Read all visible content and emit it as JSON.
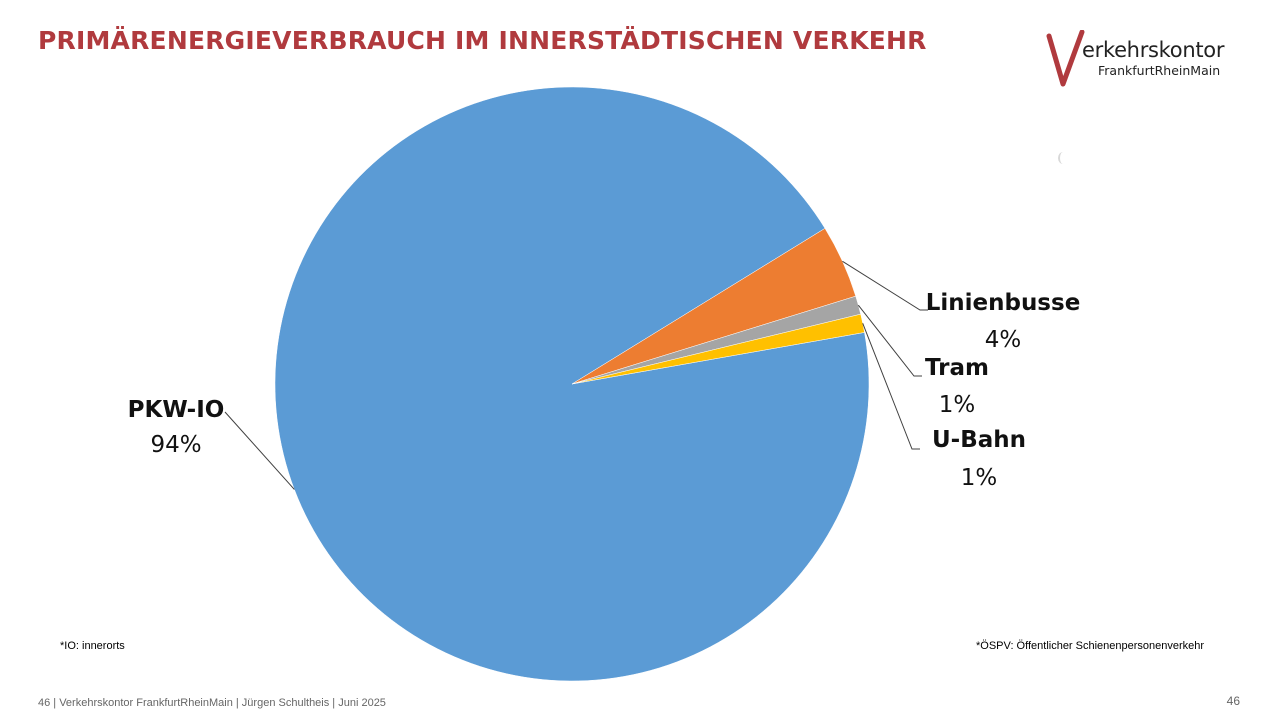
{
  "slide": {
    "title": "PRIMÄRENERGIEVERBRAUCH IM INNERSTÄDTISCHEN VERKEHR",
    "logo": {
      "letter": "V",
      "word": "erkehrskontor",
      "sub": "FrankfurtRheinMain",
      "color": "#b03a3e"
    },
    "note_left": "*IO: innerorts",
    "note_right": "*ÖSPV: Öffentlicher Schienenpersonenverkehr",
    "footer": "46  |  Verkehrskontor FrankfurtRheinMain | Jürgen Schultheis | Juni 2025",
    "page_number": "46"
  },
  "chart_data": {
    "type": "pie",
    "title": "",
    "slices": [
      {
        "label": "PKW-IO",
        "value": 94,
        "display": "94%",
        "color": "#5b9bd5"
      },
      {
        "label": "Linienbusse",
        "value": 4,
        "display": "4%",
        "color": "#ed7d31"
      },
      {
        "label": "Tram",
        "value": 1,
        "display": "1%",
        "color": "#a5a5a5"
      },
      {
        "label": "U-Bahn",
        "value": 1,
        "display": "1%",
        "color": "#ffc000"
      }
    ]
  }
}
